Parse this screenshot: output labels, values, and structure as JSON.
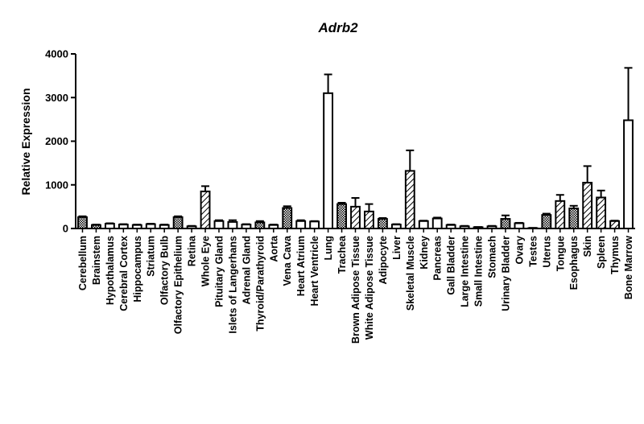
{
  "chart_data": {
    "type": "bar",
    "title": "Adrb2",
    "xlabel": "",
    "ylabel": "Relative Expression",
    "ylim": [
      0,
      4000
    ],
    "yticks": [
      "0",
      "1000",
      "2000",
      "3000",
      "4000"
    ],
    "grid": false,
    "legend": "none",
    "bar_color": "#000000",
    "categories": [
      "Cerebellum",
      "Brainstem",
      "Hypothalamus",
      "Cerebral Cortex",
      "Hippocampus",
      "Striatum",
      "Olfactory Bulb",
      "Olfactory Epithelium",
      "Retina",
      "Whole Eye",
      "Pituitary Gland",
      "Islets of Langerhans",
      "Adrenal Gland",
      "Thyroid/Parathyroid",
      "Aorta",
      "Vena Cava",
      "Heart Atrium",
      "Heart Ventricle",
      "Lung",
      "Trachea",
      "Brown Adipose Tissue",
      "White Adipose Tissue",
      "Adipocyte",
      "Liver",
      "Skeletal Muscle",
      "Kidney",
      "Pancreas",
      "Gall Bladder",
      "Large Intestine",
      "Small Intestine",
      "Stomach",
      "Urinary Bladder",
      "Ovary",
      "Testes",
      "Uterus",
      "Tongue",
      "Esophagus",
      "Skin",
      "Spleen",
      "Thymus",
      "Bone Marrow"
    ],
    "values": [
      260,
      80,
      110,
      90,
      80,
      100,
      80,
      260,
      50,
      850,
      170,
      150,
      90,
      140,
      80,
      470,
      170,
      160,
      3100,
      560,
      500,
      390,
      220,
      90,
      1320,
      170,
      230,
      80,
      50,
      30,
      50,
      220,
      120,
      10,
      310,
      630,
      460,
      1050,
      710,
      170,
      2480
    ],
    "errors": [
      20,
      10,
      10,
      10,
      10,
      10,
      10,
      20,
      10,
      120,
      20,
      40,
      10,
      30,
      10,
      40,
      20,
      10,
      430,
      30,
      200,
      170,
      20,
      10,
      470,
      10,
      20,
      10,
      10,
      5,
      10,
      80,
      10,
      5,
      30,
      140,
      60,
      380,
      160,
      10,
      1200
    ],
    "patterns": [
      "cross",
      "cross",
      "none",
      "none",
      "none",
      "none",
      "none",
      "cross",
      "none",
      "diag",
      "none",
      "none",
      "none",
      "cross",
      "none",
      "cross",
      "none",
      "none",
      "none",
      "cross",
      "diag",
      "diag",
      "cross",
      "none",
      "diag",
      "none",
      "none",
      "none",
      "none",
      "none",
      "none",
      "cross",
      "none",
      "none",
      "cross",
      "diag",
      "cross",
      "diag",
      "diag",
      "diag",
      "none"
    ]
  }
}
